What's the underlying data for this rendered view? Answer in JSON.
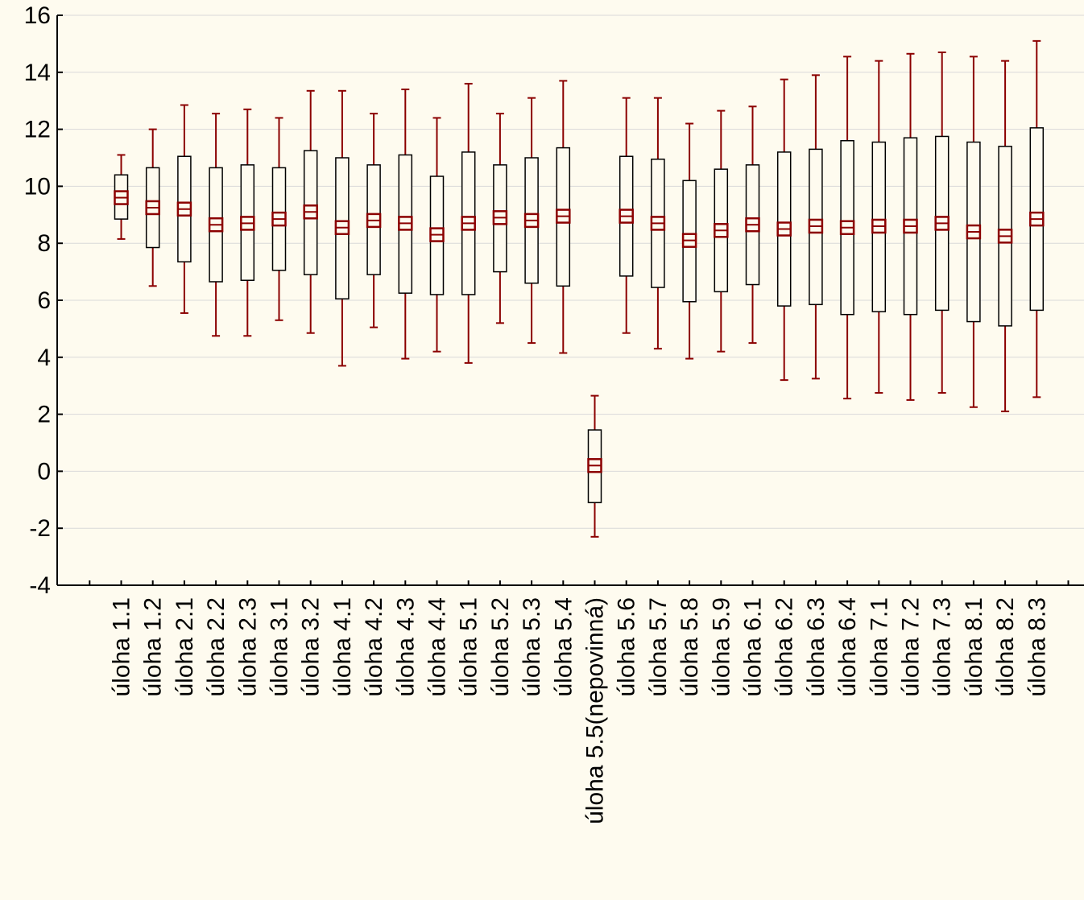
{
  "chart_data": {
    "type": "box",
    "title": "",
    "xlabel": "",
    "ylabel": "",
    "ylim": [
      -4,
      16
    ],
    "yticks": [
      -4,
      -2,
      0,
      2,
      4,
      6,
      8,
      10,
      12,
      14,
      16
    ],
    "grid": true,
    "legend": "none",
    "colors": {
      "box": "#8B0000",
      "inner_box": "#000000",
      "background": "#FEFBEF",
      "gridline": "#D9D9D9"
    },
    "categories": [
      "úloha 1.1",
      "úloha 1.2",
      "úloha 2.1",
      "úloha 2.2",
      "úloha 2.3",
      "úloha 3.1",
      "úloha 3.2",
      "úloha 4.1",
      "úloha 4.2",
      "úloha 4.3",
      "úloha 4.4",
      "úloha 5.1",
      "úloha 5.2",
      "úloha 5.3",
      "úloha 5.4",
      "úloha 5.5(nepovinná)",
      "úloha 5.6",
      "úloha 5.7",
      "úloha 5.8",
      "úloha 5.9",
      "úloha 6.1",
      "úloha 6.2",
      "úloha 6.3",
      "úloha 6.4",
      "úloha 7.1",
      "úloha 7.2",
      "úloha 7.3",
      "úloha 8.1",
      "úloha 8.2",
      "úloha 8.3"
    ],
    "boxes": [
      {
        "center": 9.6,
        "box_low": 8.85,
        "box_high": 10.4,
        "whisker_low": 8.15,
        "whisker_high": 11.1
      },
      {
        "center": 9.25,
        "box_low": 7.85,
        "box_high": 10.65,
        "whisker_low": 6.5,
        "whisker_high": 12.0
      },
      {
        "center": 9.2,
        "box_low": 7.35,
        "box_high": 11.05,
        "whisker_low": 5.55,
        "whisker_high": 12.85
      },
      {
        "center": 8.65,
        "box_low": 6.65,
        "box_high": 10.65,
        "whisker_low": 4.75,
        "whisker_high": 12.55
      },
      {
        "center": 8.7,
        "box_low": 6.7,
        "box_high": 10.75,
        "whisker_low": 4.75,
        "whisker_high": 12.7
      },
      {
        "center": 8.85,
        "box_low": 7.05,
        "box_high": 10.65,
        "whisker_low": 5.3,
        "whisker_high": 12.4
      },
      {
        "center": 9.1,
        "box_low": 6.9,
        "box_high": 11.25,
        "whisker_low": 4.85,
        "whisker_high": 13.35
      },
      {
        "center": 8.55,
        "box_low": 6.05,
        "box_high": 11.0,
        "whisker_low": 3.7,
        "whisker_high": 13.35
      },
      {
        "center": 8.8,
        "box_low": 6.9,
        "box_high": 10.75,
        "whisker_low": 5.05,
        "whisker_high": 12.55
      },
      {
        "center": 8.7,
        "box_low": 6.25,
        "box_high": 11.1,
        "whisker_low": 3.95,
        "whisker_high": 13.4
      },
      {
        "center": 8.3,
        "box_low": 6.2,
        "box_high": 10.35,
        "whisker_low": 4.2,
        "whisker_high": 12.4
      },
      {
        "center": 8.7,
        "box_low": 6.2,
        "box_high": 11.2,
        "whisker_low": 3.8,
        "whisker_high": 13.6
      },
      {
        "center": 8.9,
        "box_low": 7.0,
        "box_high": 10.75,
        "whisker_low": 5.2,
        "whisker_high": 12.55
      },
      {
        "center": 8.8,
        "box_low": 6.6,
        "box_high": 11.0,
        "whisker_low": 4.5,
        "whisker_high": 13.1
      },
      {
        "center": 8.95,
        "box_low": 6.5,
        "box_high": 11.35,
        "whisker_low": 4.15,
        "whisker_high": 13.7
      },
      {
        "center": 0.2,
        "box_low": -1.1,
        "box_high": 1.45,
        "whisker_low": -2.3,
        "whisker_high": 2.65
      },
      {
        "center": 8.95,
        "box_low": 6.85,
        "box_high": 11.05,
        "whisker_low": 4.85,
        "whisker_high": 13.1
      },
      {
        "center": 8.7,
        "box_low": 6.45,
        "box_high": 10.95,
        "whisker_low": 4.3,
        "whisker_high": 13.1
      },
      {
        "center": 8.1,
        "box_low": 5.95,
        "box_high": 10.2,
        "whisker_low": 3.95,
        "whisker_high": 12.2
      },
      {
        "center": 8.45,
        "box_low": 6.3,
        "box_high": 10.6,
        "whisker_low": 4.2,
        "whisker_high": 12.65
      },
      {
        "center": 8.65,
        "box_low": 6.55,
        "box_high": 10.75,
        "whisker_low": 4.5,
        "whisker_high": 12.8
      },
      {
        "center": 8.5,
        "box_low": 5.8,
        "box_high": 11.2,
        "whisker_low": 3.2,
        "whisker_high": 13.75
      },
      {
        "center": 8.6,
        "box_low": 5.85,
        "box_high": 11.3,
        "whisker_low": 3.25,
        "whisker_high": 13.9
      },
      {
        "center": 8.55,
        "box_low": 5.5,
        "box_high": 11.6,
        "whisker_low": 2.55,
        "whisker_high": 14.55
      },
      {
        "center": 8.6,
        "box_low": 5.6,
        "box_high": 11.55,
        "whisker_low": 2.75,
        "whisker_high": 14.4
      },
      {
        "center": 8.6,
        "box_low": 5.5,
        "box_high": 11.7,
        "whisker_low": 2.5,
        "whisker_high": 14.65
      },
      {
        "center": 8.7,
        "box_low": 5.65,
        "box_high": 11.75,
        "whisker_low": 2.75,
        "whisker_high": 14.7
      },
      {
        "center": 8.4,
        "box_low": 5.25,
        "box_high": 11.55,
        "whisker_low": 2.25,
        "whisker_high": 14.55
      },
      {
        "center": 8.25,
        "box_low": 5.1,
        "box_high": 11.4,
        "whisker_low": 2.1,
        "whisker_high": 14.4
      },
      {
        "center": 8.85,
        "box_low": 5.65,
        "box_high": 12.05,
        "whisker_low": 2.6,
        "whisker_high": 15.1
      }
    ]
  }
}
